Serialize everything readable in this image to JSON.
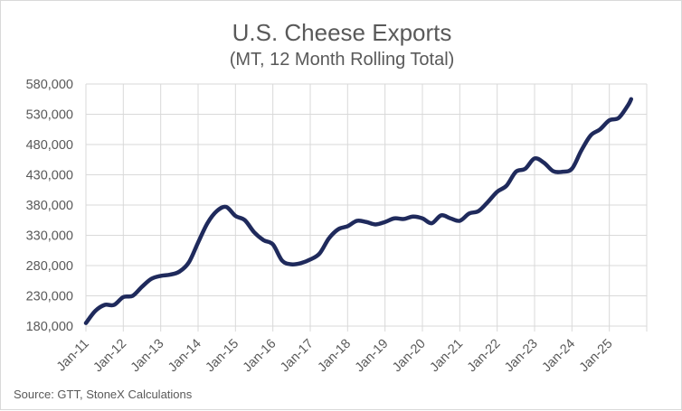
{
  "chart_data": {
    "type": "line",
    "title": "U.S. Cheese Exports",
    "subtitle": "(MT, 12 Month Rolling Total)",
    "source": "Source: GTT, StoneX Calculations",
    "xlabel": "",
    "ylabel": "",
    "ylim": [
      180000,
      580000
    ],
    "yticks": [
      "180,000",
      "230,000",
      "280,000",
      "330,000",
      "380,000",
      "430,000",
      "480,000",
      "530,000",
      "580,000"
    ],
    "xticks": [
      "Jan-11",
      "Jan-12",
      "Jan-13",
      "Jan-14",
      "Jan-15",
      "Jan-16",
      "Jan-17",
      "Jan-18",
      "Jan-19",
      "Jan-20",
      "Jan-21",
      "Jan-22",
      "Jan-23",
      "Jan-24",
      "Jan-25"
    ],
    "grid": true,
    "line_color": "#1f2a5c",
    "series": [
      {
        "x": [
          "Jan-11",
          "Apr-11",
          "Jul-11",
          "Oct-11",
          "Jan-12",
          "Apr-12",
          "Jul-12",
          "Oct-12",
          "Jan-13",
          "Apr-13",
          "Jul-13",
          "Oct-13",
          "Jan-14",
          "Apr-14",
          "Jul-14",
          "Oct-14",
          "Jan-15",
          "Apr-15",
          "Jul-15",
          "Oct-15",
          "Jan-16",
          "Apr-16",
          "Jul-16",
          "Oct-16",
          "Jan-17",
          "Apr-17",
          "Jul-17",
          "Oct-17",
          "Jan-18",
          "Apr-18",
          "Jul-18",
          "Oct-18",
          "Jan-19",
          "Apr-19",
          "Jul-19",
          "Oct-19",
          "Jan-20",
          "Apr-20",
          "Jul-20",
          "Oct-20",
          "Jan-21",
          "Apr-21",
          "Jul-21",
          "Oct-21",
          "Jan-22",
          "Apr-22",
          "Jul-22",
          "Oct-22",
          "Jan-23",
          "Apr-23",
          "Jul-23",
          "Oct-23",
          "Jan-24",
          "Apr-24",
          "Jul-24",
          "Oct-24",
          "Jan-25",
          "Apr-25",
          "Jul-25",
          "Aug-25"
        ],
        "values": [
          185000,
          205000,
          215000,
          215000,
          228000,
          230000,
          245000,
          258000,
          263000,
          265000,
          270000,
          285000,
          318000,
          350000,
          370000,
          377000,
          362000,
          355000,
          335000,
          322000,
          315000,
          288000,
          282000,
          284000,
          290000,
          300000,
          325000,
          340000,
          345000,
          354000,
          352000,
          348000,
          352000,
          358000,
          357000,
          361000,
          358000,
          350000,
          363000,
          358000,
          354000,
          366000,
          370000,
          385000,
          402000,
          412000,
          435000,
          440000,
          457000,
          450000,
          436000,
          435000,
          440000,
          470000,
          495000,
          505000,
          520000,
          524000,
          545000,
          555000
        ]
      }
    ]
  }
}
